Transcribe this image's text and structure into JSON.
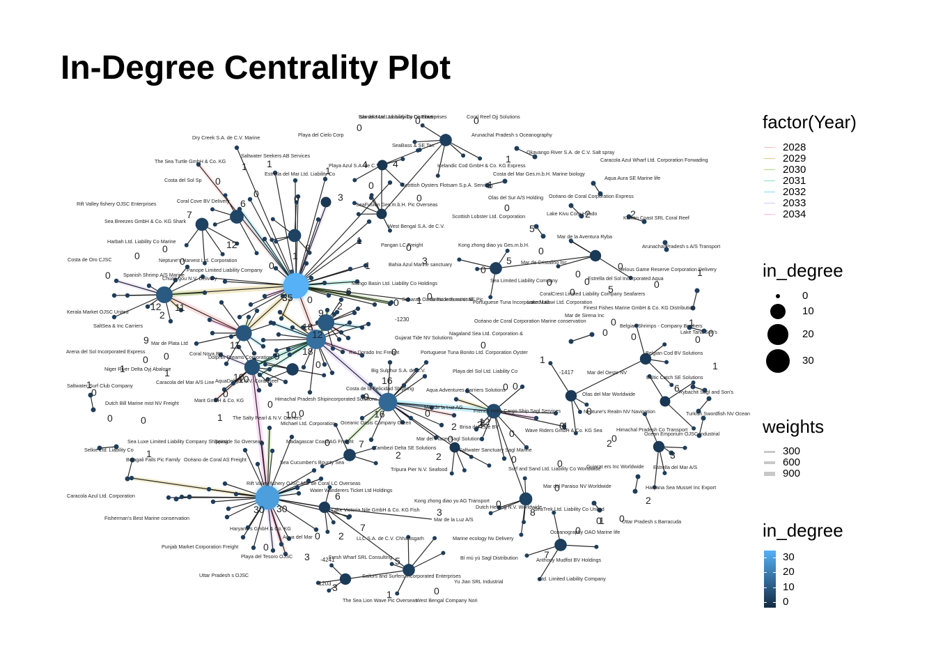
{
  "title": "In-Degree Centrality Plot",
  "legends": {
    "year": {
      "title": "factor(Year)",
      "items": [
        {
          "label": "2028",
          "color": "#f8766d"
        },
        {
          "label": "2029",
          "color": "#c49a00"
        },
        {
          "label": "2030",
          "color": "#53b400"
        },
        {
          "label": "2031",
          "color": "#00c094"
        },
        {
          "label": "2032",
          "color": "#00b6eb"
        },
        {
          "label": "2033",
          "color": "#a58aff"
        },
        {
          "label": "2034",
          "color": "#fb61d7"
        }
      ]
    },
    "size": {
      "title": "in_degree",
      "items": [
        {
          "label": "0"
        },
        {
          "label": "10"
        },
        {
          "label": "20"
        },
        {
          "label": "30"
        }
      ]
    },
    "weights": {
      "title": "weights",
      "items": [
        {
          "label": "300"
        },
        {
          "label": "600"
        },
        {
          "label": "900"
        }
      ]
    },
    "color": {
      "title": "in_degree",
      "items": [
        {
          "label": "30"
        },
        {
          "label": "20"
        },
        {
          "label": "10"
        },
        {
          "label": "0"
        }
      ],
      "low": "#132b43",
      "high": "#56b1f7"
    }
  },
  "hubs": [
    {
      "id": "H1",
      "in_degree": 35
    },
    {
      "id": "H2",
      "in_degree": 30
    },
    {
      "id": "H3",
      "in_degree": 16
    },
    {
      "id": "H4",
      "in_degree": 18
    },
    {
      "id": "H5",
      "in_degree": 12
    },
    {
      "id": "H6",
      "in_degree": 12
    },
    {
      "id": "H7",
      "in_degree": 11
    },
    {
      "id": "H8",
      "in_degree": 10
    },
    {
      "id": "H9",
      "in_degree": 8
    }
  ],
  "node_labels": [
    "Isla del Mar Ltd. Liability Co Enterprises",
    "Coral Reef Ojj Solutions",
    "Arunachal Pradesh s Oceanography",
    "Dry Creek S.A. de C.V. Marine",
    "Playa del Cielo Corp",
    "SeaBass & SE Tan",
    "Okavango River S.A. de C.V. Salt spray",
    "Caracola Azul Wharf Ltd. Corporation Forwading",
    "Saltwater Seekers AB Services",
    "The Sea Turtle GmbH & Co. KG",
    "Estrella del Mar Ltd. Liability Co",
    "Playa Azul S.A. de C.V.",
    "Icelandic Cod GmbH & Co. KG Express",
    "Costa del Mar Ges.m.b.H. Marine biology",
    "Aqua Aura SE Marine life",
    "Costa del Sol Sp",
    "Scottish Oysters Flotsam S.p.A. Services",
    "Olas del Sur A/S Holding",
    "Océano de Coral Corporation Express",
    "Rift Valley fishery OJSC Enterprises",
    "Coral Cove BV Delivery",
    "SeaFusion Ges.m.b.H. Pic Overseas",
    "Sea Breezes GmbH & Co. KG Shark",
    "Scottish Lobster Ltd. Corporation",
    "Lake Kivu Corp Hirado",
    "Kolkan Coast SRL Coral Reef",
    "West Bengal S.A. de C.V.",
    "Mar de la Aventura Ryba",
    "Harbah Ltd. Liability Co Marine",
    "Pangan LC Freight",
    "Kong zhong diao yu Ges.m.b.H.",
    "Arunachal Pradesh s A/S Transport",
    "Costa de Oro CJSC",
    "Neptune's Harvest Ltd. Corporation",
    "Mar de Cristalino Inc",
    "Panope Limited Liability Company",
    "Bahia Azul Marine sanctuary",
    "Selous Game Reserve Corporation Delivery",
    "Spanish Shrimp A/S Marine",
    "Chuan gou N.V. Delivery",
    "Mango Basin Ltd. Liability Co Holdings",
    "Sea Limited Liability Company",
    "Estrella del Sol Incorporated Aqua",
    "Saharan Oasis Pic International",
    "Seaside Summit SE Pic",
    "Portuguese Tuna Incorporated Ltd.",
    "Lake Malawi Ltd. Corporation",
    "CoralCrest Limited Liability Company Seafarers",
    "Finest Fishes Marine GmbH & Co. KG Distribution",
    "Kerala Market OJSC United",
    "SaltSea & Inc Carriers",
    "Mar de Sirena Inc",
    "Belgian Shrimps - Company Brothers",
    "Lake Tana Son's",
    "Océano de Coral Corporation Marine conservation",
    "Gujarat Tide NV Solutions",
    "Nagaland Sea Ltd. Corporation &",
    "Arena del Sol Incorporated Express",
    "Mar de Plata Ltd",
    "Coral Nova BV",
    "Dolphin Dreams Corporation",
    "Rio Dorado Inc Freight",
    "Portuguese Tuna Bonito Ltd. Corporation Oyster",
    "Belgian Cod BV Solutions",
    "Niger River Delta Oyj Abalone",
    "Baltic Catch SE Solutions",
    "Caracola del Mar A/S Line",
    "AquaDelight N.V. Coral Reef",
    "Big Sulphur S.A. de C.V.",
    "Playa del Sol Ltd. Liability Co",
    "Mar del Oeste NV",
    "Saltwater Surf Club Company",
    "Costa de la Felicidad Shipping",
    "Aqua Adventures Carriers Solutions",
    "Olas del Mar Worldwide",
    "Rybachit Sagl and Son's",
    "Dutch Bill Marine mist NV Freight",
    "Marit GmbH & Co. KG",
    "Himachal Pradesh Shipincorporated Solutions",
    "Mar de la Luz AG",
    "French Hake Cargo Ship Sagl Services",
    "Neptune's Realm NV Navigation",
    "Turkish Swordfish NV Ocean",
    "The Salty Pearl & N.V. Carriers",
    "Michael Ltd. Corporation",
    "Oceanic Oasis Company Green",
    "Brisa del Este BV",
    "Wave Riders GmbH & Co. KG Sea",
    "Himachal Pradesh Co Transport",
    "Ocean Emporium OJSC Industrial",
    "Selkie Ltd. Liability Co",
    "Sea Luxe Limited Liability Company Shipping",
    "Seaside So Overseas",
    "Madagascar Coast AG Freight",
    "Zambezi Delta SE Solutions",
    "Mar del Placer Sagl Solution",
    "Saltwater Sanctuary Sagl Marine",
    "Bujagali Falls Pic Family",
    "Océano de Coral AS Freight",
    "Sea Cucumber's Bounty Sea",
    "Tripura Pier N.V. Seafood",
    "Surf and Sand Ltd. Liability Co Worldwide",
    "Gujarat ers Inc Worldwide",
    "Estrella del Mar A/S",
    "Caracola Azul Ltd. Corporation",
    "Rift Valley fishery OJSC Mar de Coral LC Overseas",
    "Water Wanderers Ticket Ltd Holdings",
    "Mar del Paraiso NV Worldwide",
    "Haryana Sea Mussel Inc Export",
    "Fisherman's Best Marine conservation",
    "Lake Victoria Nile GmbH & Co. KG Fish",
    "Kong zhong diao yu AG Transport",
    "Mar de la Luz A/S",
    "Dutch Herring N.V. Worldwide",
    "SeaTrek Ltd. Liability Co United",
    "Uttar Pradesh s Barracuda",
    "Punjab Market Corporation Freight",
    "Haryana s GmbH & Co. KG",
    "Aqua del Mar",
    "LLC S.A. de C.V. Chhattisgarh",
    "Marine ecology Nv Delivery",
    "Oceanography OAO Marine life",
    "Playa del Tesoro OJSC",
    "Anthony Mudfist BV Holdings",
    "Fresh Wharf SRL Consulting",
    "Bí mú yú Sagl Distribution",
    "Uttar Pradesh s OJSC",
    "Sailors and Surfers Incorporated Enterprises",
    "Yu Jian SRL Industrial",
    "Ltd. Limited Liability Company",
    "The Sea Lion Wave Pic Overseas",
    "West Bengal Company Nori",
    "Samaka Ltd. Liability Co Distribution"
  ]
}
